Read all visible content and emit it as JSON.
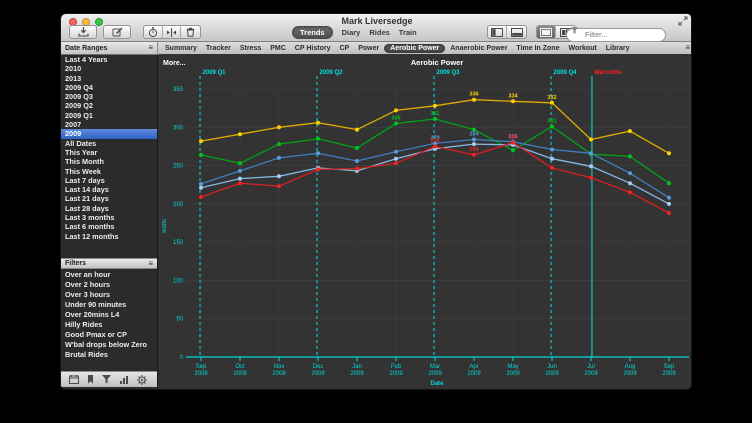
{
  "window": {
    "title": "Mark Liversedge",
    "traffic_lights": [
      "close",
      "minimize",
      "zoom"
    ],
    "fullscreen_icon": "fullscreen-arrows"
  },
  "titlebar": {
    "buttons": [
      {
        "name": "import",
        "icon": "download-tray-icon"
      },
      {
        "name": "compose",
        "icon": "compose-icon"
      },
      {
        "name": "timer",
        "icon": "stopwatch-icon"
      },
      {
        "name": "intervals",
        "icon": "split-icon"
      },
      {
        "name": "delete",
        "icon": "trash-icon"
      }
    ],
    "view_switcher": {
      "items": [
        "Trends",
        "Diary",
        "Rides",
        "Train"
      ],
      "active": "Trends"
    },
    "panel_toggles": [
      "sidebar-panel",
      "bottom-panel"
    ],
    "layout_toggles": [
      "tiled-view",
      "tabbed-view"
    ],
    "filter": {
      "placeholder": "Filter..."
    }
  },
  "chart_tabs": {
    "items": [
      "Summary",
      "Tracker",
      "Stress",
      "PMC",
      "CP History",
      "CP",
      "Power",
      "Aerobic Power",
      "Anaerobic Power",
      "Time In Zone",
      "Workout",
      "Library"
    ],
    "active": "Aerobic Power",
    "menu_icon": "menu"
  },
  "sidebar": {
    "date_ranges": {
      "title": "Date Ranges",
      "menu_icon": "menu",
      "items": [
        "Last 4 Years",
        "2010",
        "2013",
        "2009 Q4",
        "2009 Q3",
        "2009 Q2",
        "2009 Q1",
        "2007",
        "2009",
        "All Dates",
        "This Year",
        "This Month",
        "This Week",
        "Last 7 days",
        "Last 14 days",
        "Last 21 days",
        "Last 28 days",
        "Last 3 months",
        "Last 6 months",
        "Last 12 months"
      ],
      "selected": "2009"
    },
    "filters": {
      "title": "Filters",
      "menu_icon": "menu",
      "items": [
        "Over an hour",
        "Over 2 hours",
        "Over 3 hours",
        "Under 90 minutes",
        "Over 20mins L4",
        "Hilly Rides",
        "Good Pmax or CP",
        "W'bal drops below Zero",
        "Brutal Rides"
      ]
    },
    "bottom_icons": [
      "calendar",
      "bookmark",
      "filter-funnel",
      "chart-bars",
      "settings-gear"
    ]
  },
  "chart_data": {
    "type": "line",
    "title": "Aerobic Power",
    "more_label": "More...",
    "xlabel": "Date",
    "ylabel": "watts",
    "ylim": [
      0,
      350
    ],
    "yticks": [
      0,
      50,
      100,
      150,
      200,
      250,
      300,
      350
    ],
    "grid": true,
    "legend_position": "none",
    "axis_color": "#00d8d8",
    "categories": [
      "Sep 2008",
      "Oct 2008",
      "Nov 2008",
      "Dec 2008",
      "Jan 2009",
      "Feb 2009",
      "Mar 2009",
      "Apr 2009",
      "May 2009",
      "Jun 2009",
      "Jul 2009",
      "Aug 2009",
      "Sep 2009"
    ],
    "series": [
      {
        "name": "gold",
        "color": "#e0ac00",
        "marker": "#ffd000",
        "values": [
          282,
          291,
          300,
          306,
          297,
          322,
          328,
          336,
          334,
          332,
          284,
          295,
          266
        ],
        "labels": {
          "7": "336",
          "8": "334",
          "9": "332"
        }
      },
      {
        "name": "green",
        "color": "#00a316",
        "marker": "#00c41c",
        "values": [
          264,
          253,
          278,
          285,
          273,
          305,
          311,
          297,
          270,
          301,
          265,
          262,
          227
        ],
        "labels": {
          "5": "305",
          "6": "311",
          "9": "301"
        }
      },
      {
        "name": "blue",
        "color": "#3f7fc0",
        "marker": "#5b9bd8",
        "values": [
          226,
          243,
          260,
          266,
          256,
          268,
          279,
          284,
          281,
          271,
          266,
          240,
          208
        ],
        "labels": {
          "6": "279",
          "7": "284",
          "8": "281"
        }
      },
      {
        "name": "light-blue",
        "color": "#87b7e3",
        "marker": "#a4cdf2",
        "values": [
          221,
          233,
          236,
          247,
          243,
          259,
          272,
          278,
          277,
          259,
          249,
          227,
          200
        ],
        "labels": {}
      },
      {
        "name": "red",
        "color": "#d62020",
        "marker": "#f22222",
        "values": [
          209,
          227,
          223,
          245,
          246,
          253,
          275,
          264,
          280,
          247,
          234,
          215,
          188
        ],
        "labels": {
          "6": "275",
          "7": "264",
          "8": "280"
        }
      }
    ],
    "event_markers": [
      {
        "label": "2009 Q1",
        "month_index": 0,
        "style": "dashed",
        "label_color": "#00e0e0"
      },
      {
        "label": "2009 Q2",
        "month_index": 3,
        "style": "dashed",
        "label_color": "#00e0e0"
      },
      {
        "label": "2009 Q3",
        "month_index": 6,
        "style": "dashed",
        "label_color": "#00e0e0"
      },
      {
        "label": "2009 Q4",
        "month_index": 9,
        "style": "dashed",
        "label_color": "#00e0e0"
      },
      {
        "label": "Marmotte",
        "month_index": 10.05,
        "style": "solid",
        "label_color": "#ff2020"
      }
    ]
  }
}
